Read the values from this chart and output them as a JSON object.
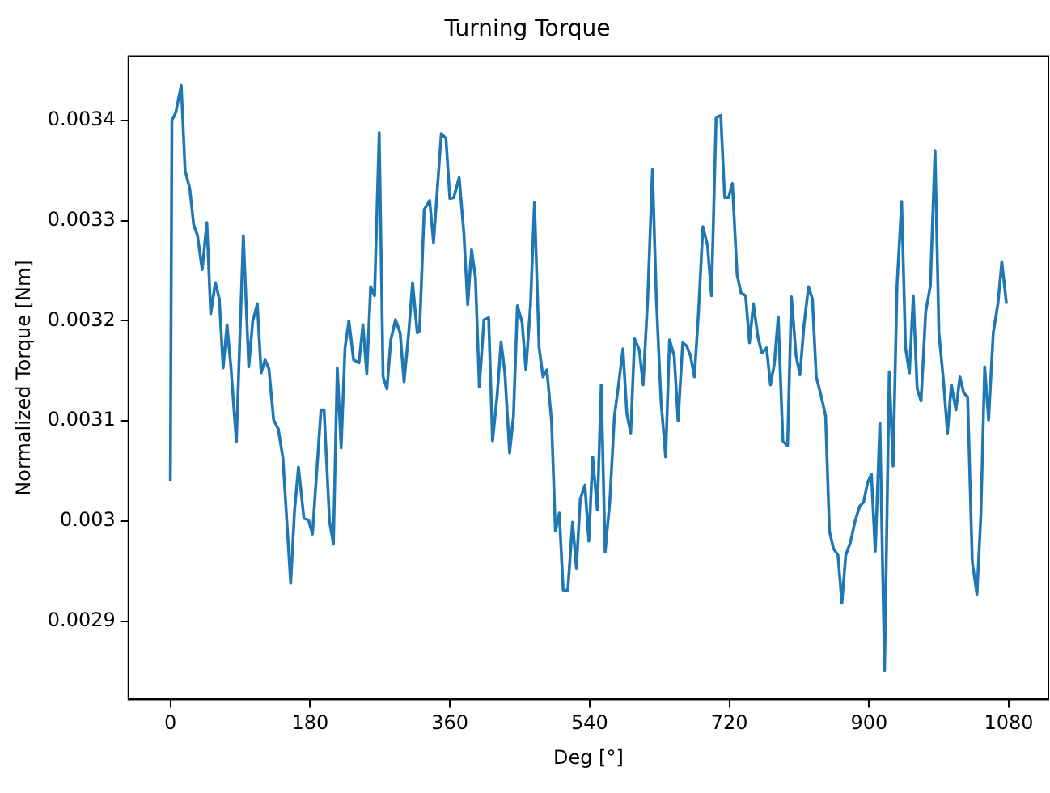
{
  "chart_data": {
    "type": "line",
    "title": "Turning Torque",
    "xlabel": "Deg [°]",
    "ylabel": "Normalized Torque [Nm]",
    "x": [
      0,
      2,
      7,
      14,
      19,
      25,
      30,
      35,
      41,
      47,
      52,
      58,
      63,
      68,
      73,
      78,
      85,
      94,
      101,
      106,
      112,
      117,
      122,
      127,
      133,
      139,
      145,
      155,
      160,
      165,
      172,
      178,
      183,
      194,
      198,
      205,
      210,
      215,
      220,
      225,
      230,
      236,
      243,
      248,
      253,
      258,
      263,
      269,
      274,
      279,
      284,
      290,
      296,
      301,
      307,
      312,
      318,
      321,
      327,
      334,
      339,
      349,
      355,
      360,
      365,
      372,
      378,
      383,
      388,
      393,
      398,
      404,
      410,
      415,
      421,
      426,
      431,
      437,
      442,
      447,
      453,
      458,
      464,
      469,
      475,
      480,
      485,
      491,
      496,
      501,
      506,
      512,
      518,
      523,
      528,
      534,
      539,
      544,
      550,
      555,
      560,
      566,
      572,
      577,
      583,
      588,
      593,
      598,
      604,
      609,
      615,
      621,
      626,
      632,
      638,
      643,
      649,
      654,
      660,
      665,
      670,
      675,
      680,
      686,
      692,
      697,
      703,
      709,
      714,
      719,
      724,
      730,
      735,
      741,
      746,
      751,
      757,
      762,
      768,
      773,
      778,
      783,
      789,
      795,
      800,
      806,
      811,
      816,
      822,
      827,
      832,
      838,
      844,
      849,
      854,
      860,
      865,
      870,
      876,
      882,
      888,
      893,
      898,
      903,
      908,
      914,
      920,
      926,
      931,
      936,
      942,
      947,
      952,
      957,
      962,
      967,
      973,
      979,
      985,
      990,
      996,
      1001,
      1006,
      1012,
      1017,
      1022,
      1027,
      1033,
      1039,
      1044,
      1049,
      1054,
      1060,
      1066,
      1071,
      1077
    ],
    "series": [
      {
        "color": "#1f77b4",
        "values": [
          0.00304,
          0.0034,
          0.003408,
          0.003435,
          0.00335,
          0.003332,
          0.003296,
          0.003285,
          0.003251,
          0.003298,
          0.003207,
          0.003238,
          0.003222,
          0.003153,
          0.003196,
          0.003154,
          0.003079,
          0.003285,
          0.003154,
          0.003199,
          0.003217,
          0.003148,
          0.003161,
          0.003152,
          0.003101,
          0.003092,
          0.003063,
          0.002938,
          0.003011,
          0.003054,
          0.003003,
          0.003001,
          0.002987,
          0.003111,
          0.003111,
          0.003,
          0.002977,
          0.003153,
          0.003073,
          0.003173,
          0.0032,
          0.003161,
          0.003158,
          0.003196,
          0.003147,
          0.003234,
          0.003225,
          0.003388,
          0.003144,
          0.003132,
          0.003181,
          0.003201,
          0.003188,
          0.003139,
          0.003188,
          0.003238,
          0.003188,
          0.00319,
          0.003311,
          0.00332,
          0.003278,
          0.003387,
          0.003382,
          0.003322,
          0.003323,
          0.003343,
          0.003288,
          0.003216,
          0.003271,
          0.003243,
          0.003134,
          0.003201,
          0.003203,
          0.00308,
          0.003126,
          0.003179,
          0.003147,
          0.003068,
          0.003105,
          0.003215,
          0.003199,
          0.003151,
          0.003217,
          0.003318,
          0.003173,
          0.003144,
          0.003151,
          0.0031,
          0.00299,
          0.003008,
          0.002931,
          0.002931,
          0.002999,
          0.002953,
          0.003022,
          0.003036,
          0.00298,
          0.003064,
          0.003011,
          0.003136,
          0.002969,
          0.003019,
          0.003105,
          0.003134,
          0.003172,
          0.003107,
          0.003088,
          0.003182,
          0.003171,
          0.003136,
          0.003224,
          0.003351,
          0.003222,
          0.00312,
          0.003064,
          0.003181,
          0.003165,
          0.0031,
          0.003178,
          0.003175,
          0.003165,
          0.003144,
          0.003204,
          0.003294,
          0.003275,
          0.003225,
          0.003403,
          0.003405,
          0.003323,
          0.003323,
          0.003337,
          0.003246,
          0.003228,
          0.003225,
          0.003178,
          0.003217,
          0.003183,
          0.003168,
          0.003173,
          0.003136,
          0.003157,
          0.003204,
          0.00308,
          0.003075,
          0.003224,
          0.003165,
          0.003146,
          0.003194,
          0.003234,
          0.003222,
          0.003144,
          0.003126,
          0.003105,
          0.00299,
          0.002973,
          0.002966,
          0.002918,
          0.002966,
          0.002979,
          0.003,
          0.003015,
          0.003019,
          0.003038,
          0.003047,
          0.00297,
          0.003098,
          0.002851,
          0.003149,
          0.003055,
          0.003235,
          0.003319,
          0.003173,
          0.003148,
          0.003225,
          0.003132,
          0.00312,
          0.003209,
          0.003235,
          0.00337,
          0.003188,
          0.003139,
          0.003088,
          0.003136,
          0.003111,
          0.003144,
          0.003128,
          0.003124,
          0.002959,
          0.002927,
          0.003005,
          0.003154,
          0.003101,
          0.003188,
          0.003217,
          0.003259,
          0.003217
        ]
      }
    ],
    "xlim": [
      -54,
      1131
    ],
    "xticks": [
      0,
      180,
      360,
      540,
      720,
      900,
      1080
    ],
    "ylim": [
      0.002822,
      0.003464
    ],
    "yticks": [
      0.0029,
      0.003,
      0.0031,
      0.0032,
      0.0033,
      0.0034
    ],
    "grid": false,
    "legend": false,
    "marker": "none",
    "line_style": "solid"
  }
}
